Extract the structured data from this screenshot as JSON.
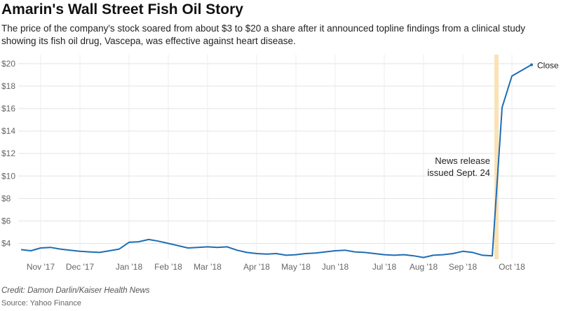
{
  "chart_data": {
    "type": "line",
    "title": "Amarin's Wall Street Fish Oil Story",
    "subtitle": "The price of the company's stock soared from about $3 to $20 a share after it announced topline findings from a clinical study showing its fish oil drug, Vascepa, was effective against heart disease.",
    "categories": [
      null,
      null,
      "Nov '17",
      null,
      null,
      null,
      "Dec '17",
      null,
      null,
      null,
      null,
      "Jan '18",
      null,
      null,
      null,
      "Feb '18",
      null,
      null,
      null,
      "Mar '18",
      null,
      null,
      null,
      null,
      "Apr '18",
      null,
      null,
      null,
      "May '18",
      null,
      null,
      null,
      "Jun '18",
      null,
      null,
      null,
      null,
      "Jul '18",
      null,
      null,
      null,
      "Aug '18",
      null,
      null,
      null,
      "Sep '18",
      null,
      null,
      null,
      null,
      "Oct '18",
      null,
      null
    ],
    "series": [
      {
        "name": "Close",
        "color": "#1f6db3",
        "values": [
          3.45,
          3.35,
          3.6,
          3.65,
          3.5,
          3.4,
          3.3,
          3.25,
          3.2,
          3.35,
          3.5,
          4.1,
          4.15,
          4.35,
          4.2,
          4.0,
          3.8,
          3.6,
          3.65,
          3.7,
          3.65,
          3.7,
          3.4,
          3.2,
          3.1,
          3.05,
          3.1,
          2.95,
          3.0,
          3.1,
          3.15,
          3.25,
          3.35,
          3.4,
          3.25,
          3.2,
          3.1,
          3.0,
          2.95,
          3.0,
          2.9,
          2.75,
          2.95,
          3.0,
          3.1,
          3.3,
          3.2,
          2.95,
          2.9,
          16.1,
          18.9,
          19.4,
          19.9
        ]
      }
    ],
    "ylim": [
      2.6,
      20.8
    ],
    "yticks": [
      {
        "value": 4,
        "label": "$4"
      },
      {
        "value": 6,
        "label": "$6"
      },
      {
        "value": 8,
        "label": "$8"
      },
      {
        "value": 10,
        "label": "$10"
      },
      {
        "value": 12,
        "label": "$12"
      },
      {
        "value": 14,
        "label": "$14"
      },
      {
        "value": 16,
        "label": "$16"
      },
      {
        "value": 18,
        "label": "$18"
      },
      {
        "value": 20,
        "label": "$20"
      }
    ],
    "grid": true,
    "annotation": [
      "News release",
      "issued Sept. 24"
    ],
    "credit": "Credit: Damon Darlin/Kaiser Health News",
    "source": "Source: Yahoo Finance"
  }
}
